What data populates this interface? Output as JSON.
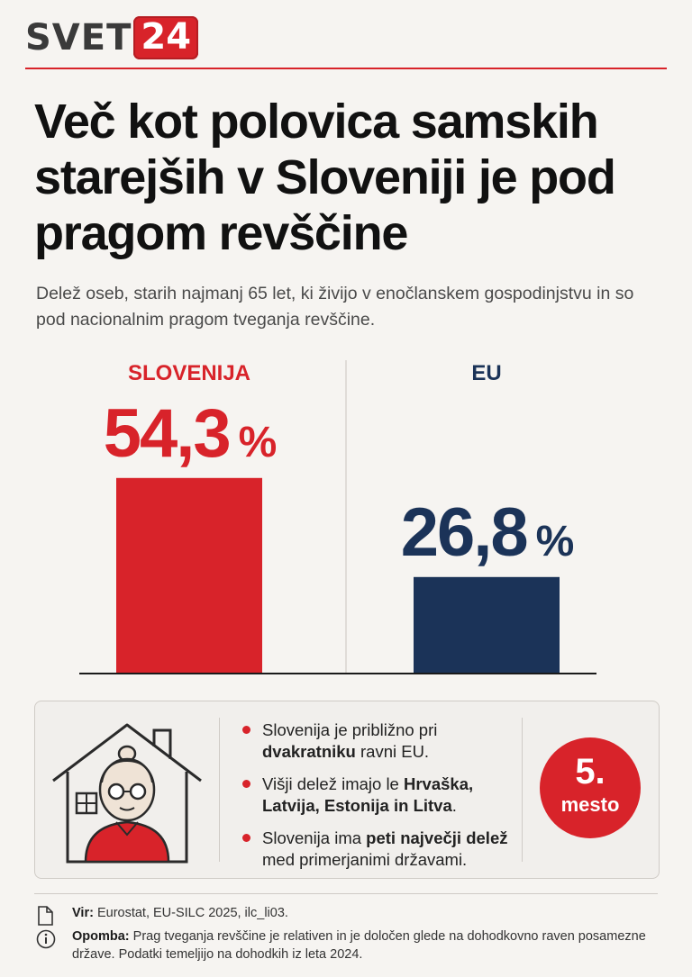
{
  "brand": {
    "name": "SVET",
    "number": "24"
  },
  "headline": "Več kot polovica samskih starejših v Sloveniji je pod pragom revščine",
  "subtitle": "Delež oseb, starih najmanj 65 let, ki živijo v enočlanskem gospodinjstvu in so pod nacionalnim pragom tveganja revščine.",
  "chart_data": {
    "type": "bar",
    "categories": [
      "SLOVENIJA",
      "EU"
    ],
    "values": [
      54.3,
      26.8
    ],
    "value_labels": [
      "54,3",
      "26,8"
    ],
    "unit": "%",
    "colors": [
      "#d8232a",
      "#1b3358"
    ],
    "title": "",
    "xlabel": "",
    "ylabel": "",
    "ylim": [
      0,
      100
    ],
    "grid": false,
    "legend": "none"
  },
  "info": {
    "items": [
      {
        "pre": "Slovenija je približno pri ",
        "bold": "dvakratniku",
        "post": " ravni EU."
      },
      {
        "pre": "Višji delež imajo le ",
        "bold": "Hrvaška, Latvija, Estonija in Litva",
        "post": "."
      },
      {
        "pre": "Slovenija ima ",
        "bold": "peti največji delež",
        "post": " med primerjanimi državami."
      }
    ],
    "rank": {
      "number": "5.",
      "label": "mesto"
    },
    "illustration_icon": "house-elderly-woman-icon"
  },
  "footer": {
    "source_label": "Vir:",
    "source_text": "Eurostat, EU-SILC 2025, ilc_li03.",
    "note_label": "Opomba:",
    "note_text": "Prag tveganja revščine je relativen in je določen glede na dohodkovno raven posamezne države. Podatki temeljijo na dohodkih iz leta 2024.",
    "source_icon": "document-icon",
    "note_icon": "info-icon"
  }
}
